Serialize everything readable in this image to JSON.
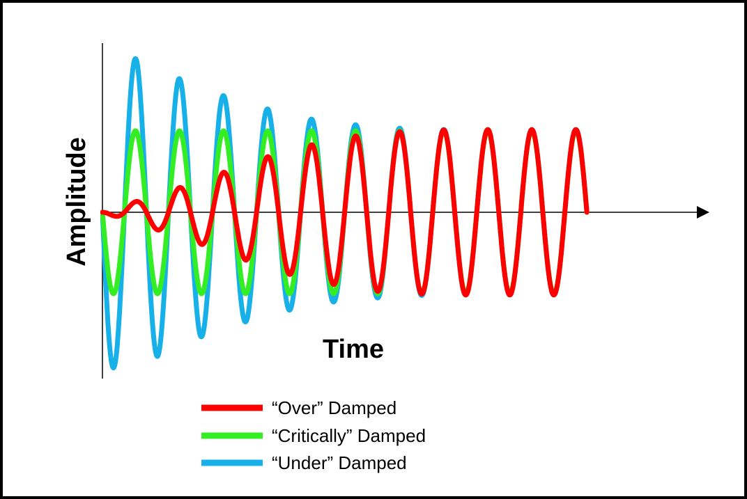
{
  "chart_data": {
    "type": "line",
    "title": "",
    "xlabel": "Time",
    "ylabel": "Amplitude",
    "x_axis_arrow": true,
    "grid": false,
    "legend_position": "bottom-center",
    "xlim": [
      0,
      11
    ],
    "ylim": [
      -1.9,
      1.8
    ],
    "series": [
      {
        "name": "“Over” Damped",
        "color": "#ff0000",
        "frequency_cycles_per_unit": 1.0,
        "amplitude_envelope": {
          "x": [
            0,
            0.8,
            2,
            3,
            4,
            5,
            6,
            7,
            8,
            11
          ],
          "y": [
            0.0,
            0.18,
            0.45,
            0.7,
            0.95,
            1.12,
            1.25,
            1.3,
            1.32,
            1.32
          ]
        },
        "start_phase": "downward",
        "draw_order": 3
      },
      {
        "name": "“Critically” Damped",
        "color": "#33ee22",
        "frequency_cycles_per_unit": 1.0,
        "amplitude_envelope": {
          "x": [
            0,
            1,
            11
          ],
          "y": [
            1.3,
            1.3,
            1.3
          ]
        },
        "start_phase": "downward",
        "draw_order": 2
      },
      {
        "name": "“Under” Damped",
        "color": "#18b0e8",
        "frequency_cycles_per_unit": 1.0,
        "amplitude_envelope": {
          "x": [
            0,
            0.8,
            2,
            3,
            4,
            5,
            6,
            7,
            8,
            11
          ],
          "y": [
            2.5,
            2.45,
            2.05,
            1.8,
            1.6,
            1.45,
            1.38,
            1.33,
            1.32,
            1.32
          ]
        },
        "start_phase": "downward",
        "draw_order": 1
      }
    ]
  },
  "legend": {
    "items": [
      {
        "label": "“Over” Damped",
        "color": "#ff0000"
      },
      {
        "label": "“Critically” Damped",
        "color": "#33ee22"
      },
      {
        "label": "“Under” Damped",
        "color": "#18b0e8"
      }
    ]
  }
}
